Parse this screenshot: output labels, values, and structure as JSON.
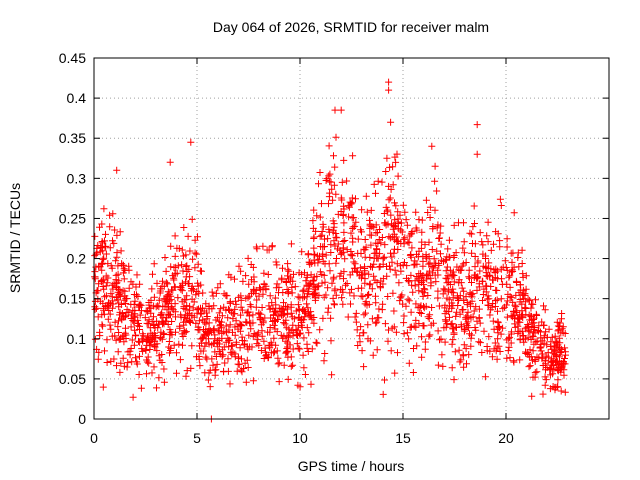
{
  "chart_data": {
    "type": "scatter",
    "title": "Day 064 of 2026, SRMTID for receiver malm",
    "xlabel": "GPS time / hours",
    "ylabel": "SRMTID / TECUs",
    "xlim": [
      0,
      25
    ],
    "ylim": [
      0,
      0.45
    ],
    "xticks": [
      0,
      5,
      10,
      15,
      20
    ],
    "xtick_labels": [
      "0",
      "5",
      "10",
      "15",
      "20"
    ],
    "yticks": [
      0,
      0.05,
      0.1,
      0.15,
      0.2,
      0.25,
      0.3,
      0.35,
      0.4,
      0.45
    ],
    "ytick_labels": [
      "0",
      "0.05",
      "0.1",
      "0.15",
      "0.2",
      "0.25",
      "0.3",
      "0.35",
      "0.4",
      "0.45"
    ],
    "grid": true,
    "marker": "+",
    "color": "#ff0000",
    "data_range_hours": [
      0,
      22.9
    ],
    "trend": [
      {
        "x": 0.0,
        "y": 0.15
      },
      {
        "x": 0.5,
        "y": 0.17
      },
      {
        "x": 1.0,
        "y": 0.16
      },
      {
        "x": 1.5,
        "y": 0.14
      },
      {
        "x": 2.0,
        "y": 0.12
      },
      {
        "x": 3.0,
        "y": 0.11
      },
      {
        "x": 4.0,
        "y": 0.15
      },
      {
        "x": 5.0,
        "y": 0.15
      },
      {
        "x": 5.5,
        "y": 0.11
      },
      {
        "x": 6.0,
        "y": 0.1
      },
      {
        "x": 7.0,
        "y": 0.12
      },
      {
        "x": 8.0,
        "y": 0.14
      },
      {
        "x": 9.0,
        "y": 0.13
      },
      {
        "x": 10.0,
        "y": 0.12
      },
      {
        "x": 10.5,
        "y": 0.15
      },
      {
        "x": 11.0,
        "y": 0.19
      },
      {
        "x": 11.5,
        "y": 0.21
      },
      {
        "x": 12.0,
        "y": 0.24
      },
      {
        "x": 12.5,
        "y": 0.2
      },
      {
        "x": 13.0,
        "y": 0.17
      },
      {
        "x": 13.5,
        "y": 0.18
      },
      {
        "x": 14.0,
        "y": 0.21
      },
      {
        "x": 14.5,
        "y": 0.22
      },
      {
        "x": 15.0,
        "y": 0.2
      },
      {
        "x": 15.5,
        "y": 0.17
      },
      {
        "x": 16.0,
        "y": 0.16
      },
      {
        "x": 16.5,
        "y": 0.2
      },
      {
        "x": 17.0,
        "y": 0.16
      },
      {
        "x": 17.5,
        "y": 0.15
      },
      {
        "x": 18.0,
        "y": 0.15
      },
      {
        "x": 18.5,
        "y": 0.16
      },
      {
        "x": 19.0,
        "y": 0.15
      },
      {
        "x": 19.5,
        "y": 0.15
      },
      {
        "x": 20.0,
        "y": 0.16
      },
      {
        "x": 20.5,
        "y": 0.15
      },
      {
        "x": 21.0,
        "y": 0.12
      },
      {
        "x": 21.5,
        "y": 0.1
      },
      {
        "x": 22.0,
        "y": 0.08
      },
      {
        "x": 22.5,
        "y": 0.08
      },
      {
        "x": 22.9,
        "y": 0.08
      }
    ],
    "notable_points": [
      {
        "x": 4.7,
        "y": 0.345
      },
      {
        "x": 3.7,
        "y": 0.32
      },
      {
        "x": 1.1,
        "y": 0.31
      },
      {
        "x": 11.7,
        "y": 0.385
      },
      {
        "x": 12.0,
        "y": 0.385
      },
      {
        "x": 14.3,
        "y": 0.42
      },
      {
        "x": 14.3,
        "y": 0.41
      },
      {
        "x": 14.4,
        "y": 0.37
      },
      {
        "x": 16.4,
        "y": 0.34
      },
      {
        "x": 18.6,
        "y": 0.367
      },
      {
        "x": 18.6,
        "y": 0.33
      },
      {
        "x": 20.4,
        "y": 0.257
      },
      {
        "x": 5.7,
        "y": 0.0
      },
      {
        "x": 1.9,
        "y": 0.027
      },
      {
        "x": 13.3,
        "y": 0.1
      },
      {
        "x": 22.5,
        "y": 0.04
      }
    ]
  }
}
